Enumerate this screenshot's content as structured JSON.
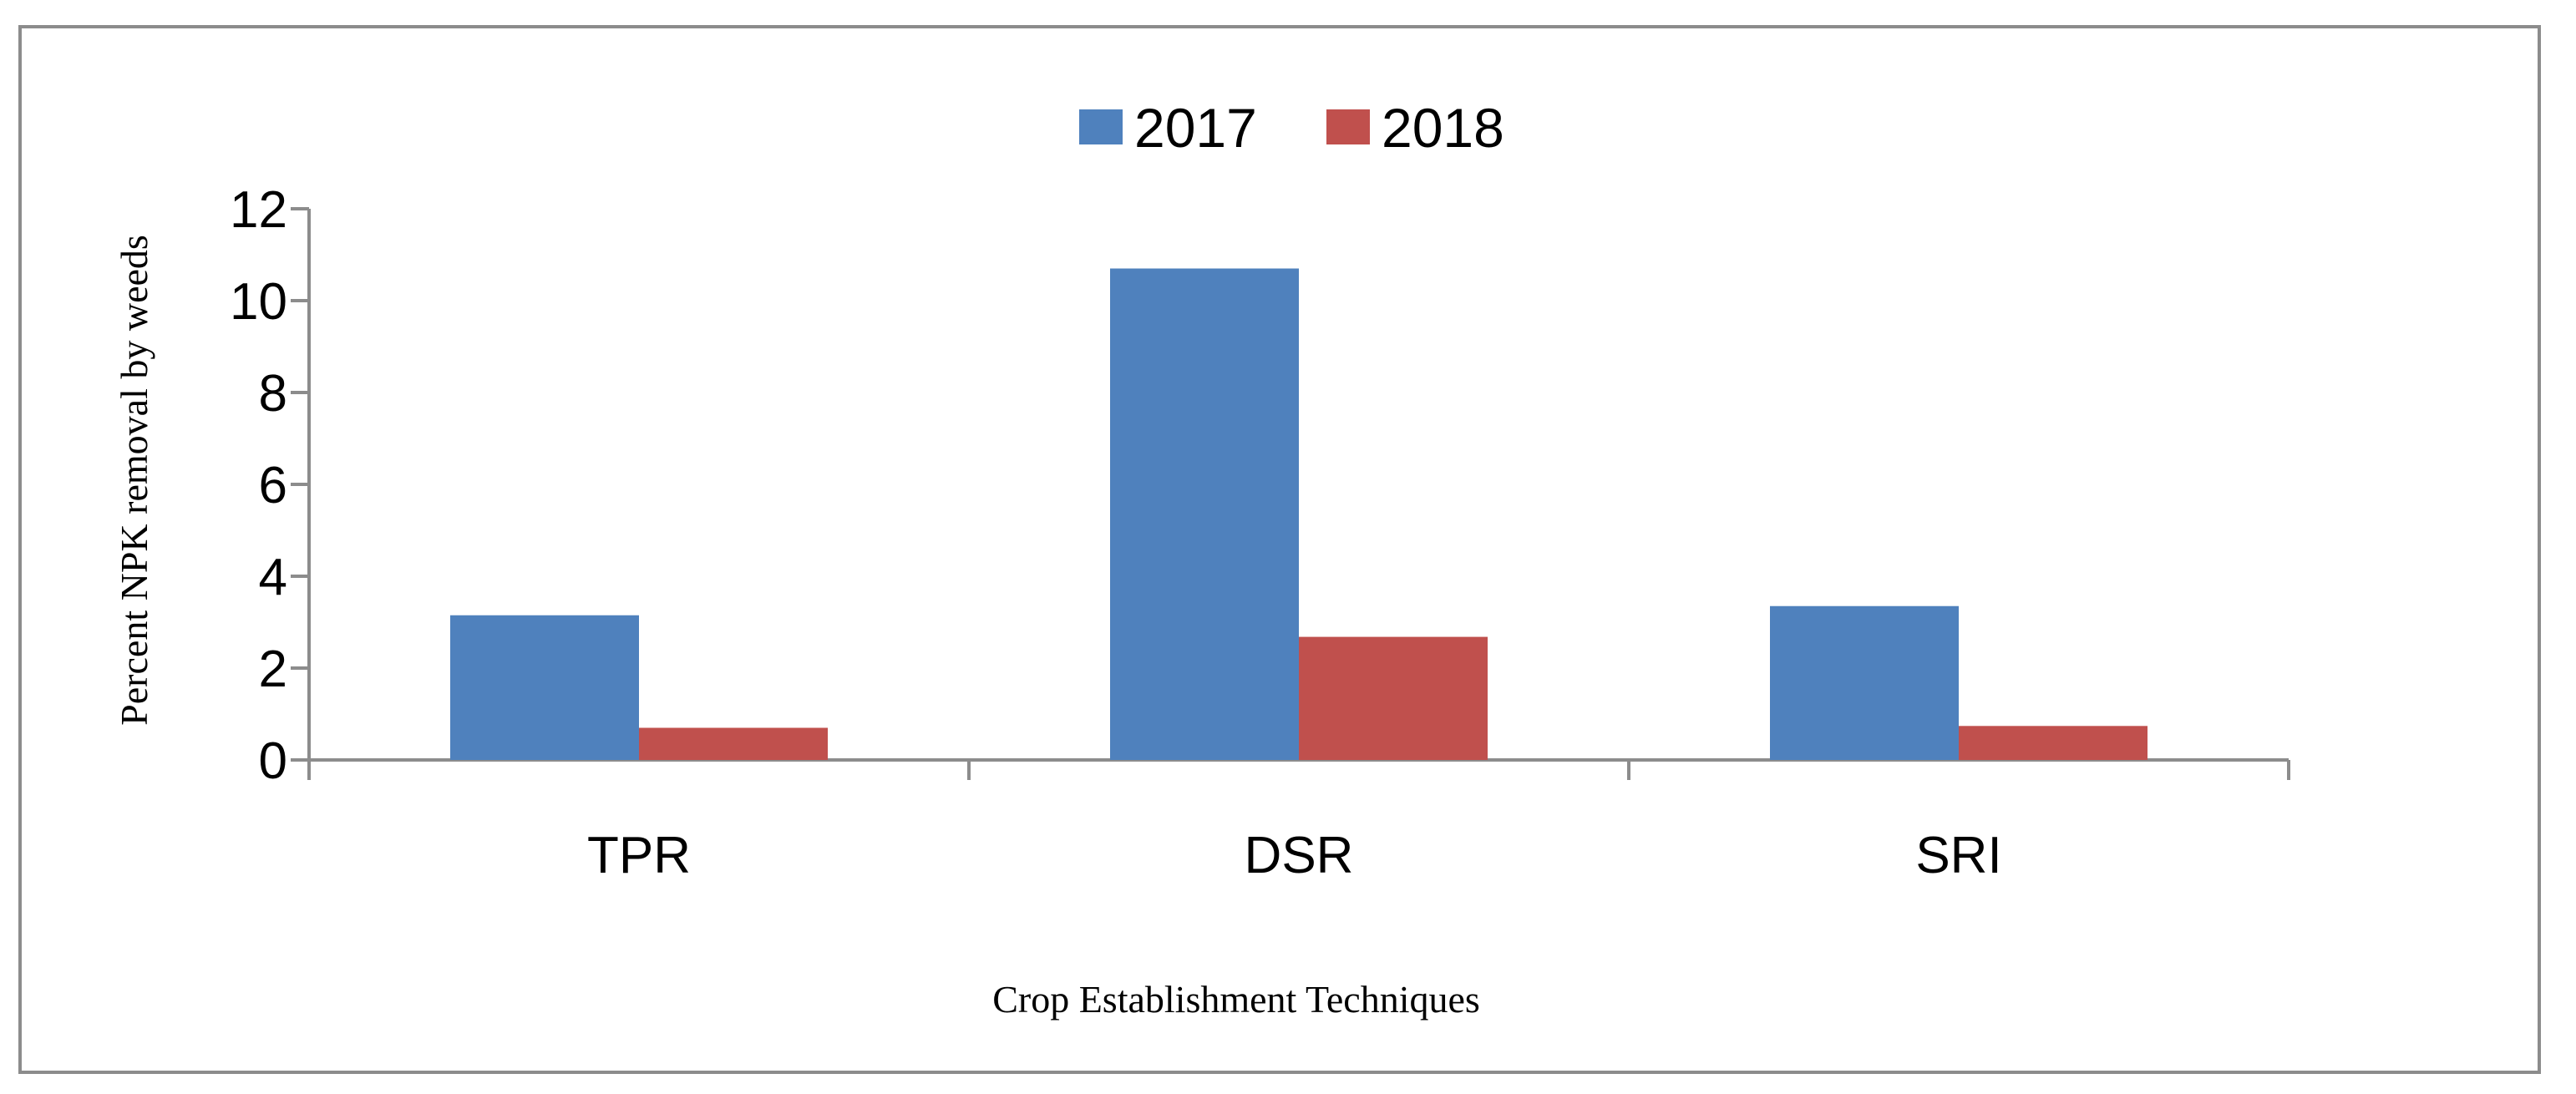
{
  "chart_data": {
    "type": "bar",
    "title": "",
    "categories": [
      "TPR",
      "DSR",
      "SRI"
    ],
    "series": [
      {
        "name": "2017",
        "values": [
          3.15,
          10.7,
          3.35
        ],
        "color": "#4f81bd"
      },
      {
        "name": "2018",
        "values": [
          0.7,
          2.68,
          0.74
        ],
        "color": "#c0504d"
      }
    ],
    "xlabel": "Crop Establishment Techniques",
    "ylabel": "Percent NPK removal by weeds",
    "ylim": [
      0,
      12
    ],
    "yticks": [
      0,
      2,
      4,
      6,
      8,
      10,
      12
    ],
    "grid": false,
    "legend_position": "top-center"
  },
  "colors": {
    "axis": "#8c8c8c",
    "frame": "#8c8c8c",
    "text": "#000000"
  }
}
